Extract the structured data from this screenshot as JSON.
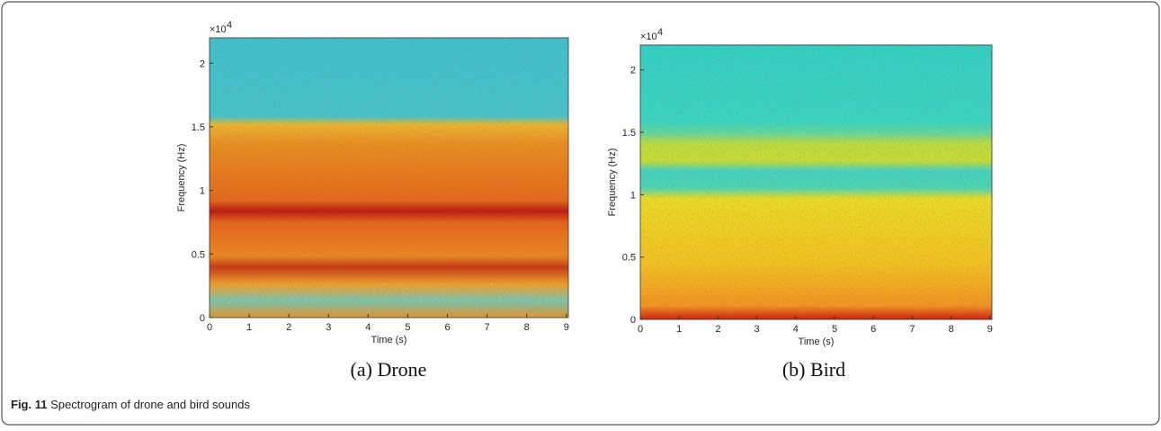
{
  "chart_data": [
    {
      "type": "spectrogram",
      "subtitle": "(a) Drone",
      "xlabel": "Time (s)",
      "ylabel": "Frequency (Hz)",
      "exponent_base": "×10",
      "exponent": "4",
      "xlim": [
        0,
        9.05
      ],
      "xticks": [
        0,
        1,
        2,
        3,
        4,
        5,
        6,
        7,
        8,
        9
      ],
      "ylim": [
        0,
        2.2
      ],
      "yticks": [
        0,
        0.5,
        1,
        1.5,
        2
      ]
    },
    {
      "type": "spectrogram",
      "subtitle": "(b) Bird",
      "xlabel": "Time (s)",
      "ylabel": "Frequency (Hz)",
      "exponent_base": "×10",
      "exponent": "4",
      "xlim": [
        0,
        9.05
      ],
      "xticks": [
        0,
        1,
        2,
        3,
        4,
        5,
        6,
        7,
        8,
        9
      ],
      "ylim": [
        0,
        2.2
      ],
      "yticks": [
        0,
        0.5,
        1,
        1.5,
        2
      ]
    }
  ],
  "caption": {
    "label": "Fig. 11",
    "text": "Spectrogram of drone and bird sounds"
  }
}
